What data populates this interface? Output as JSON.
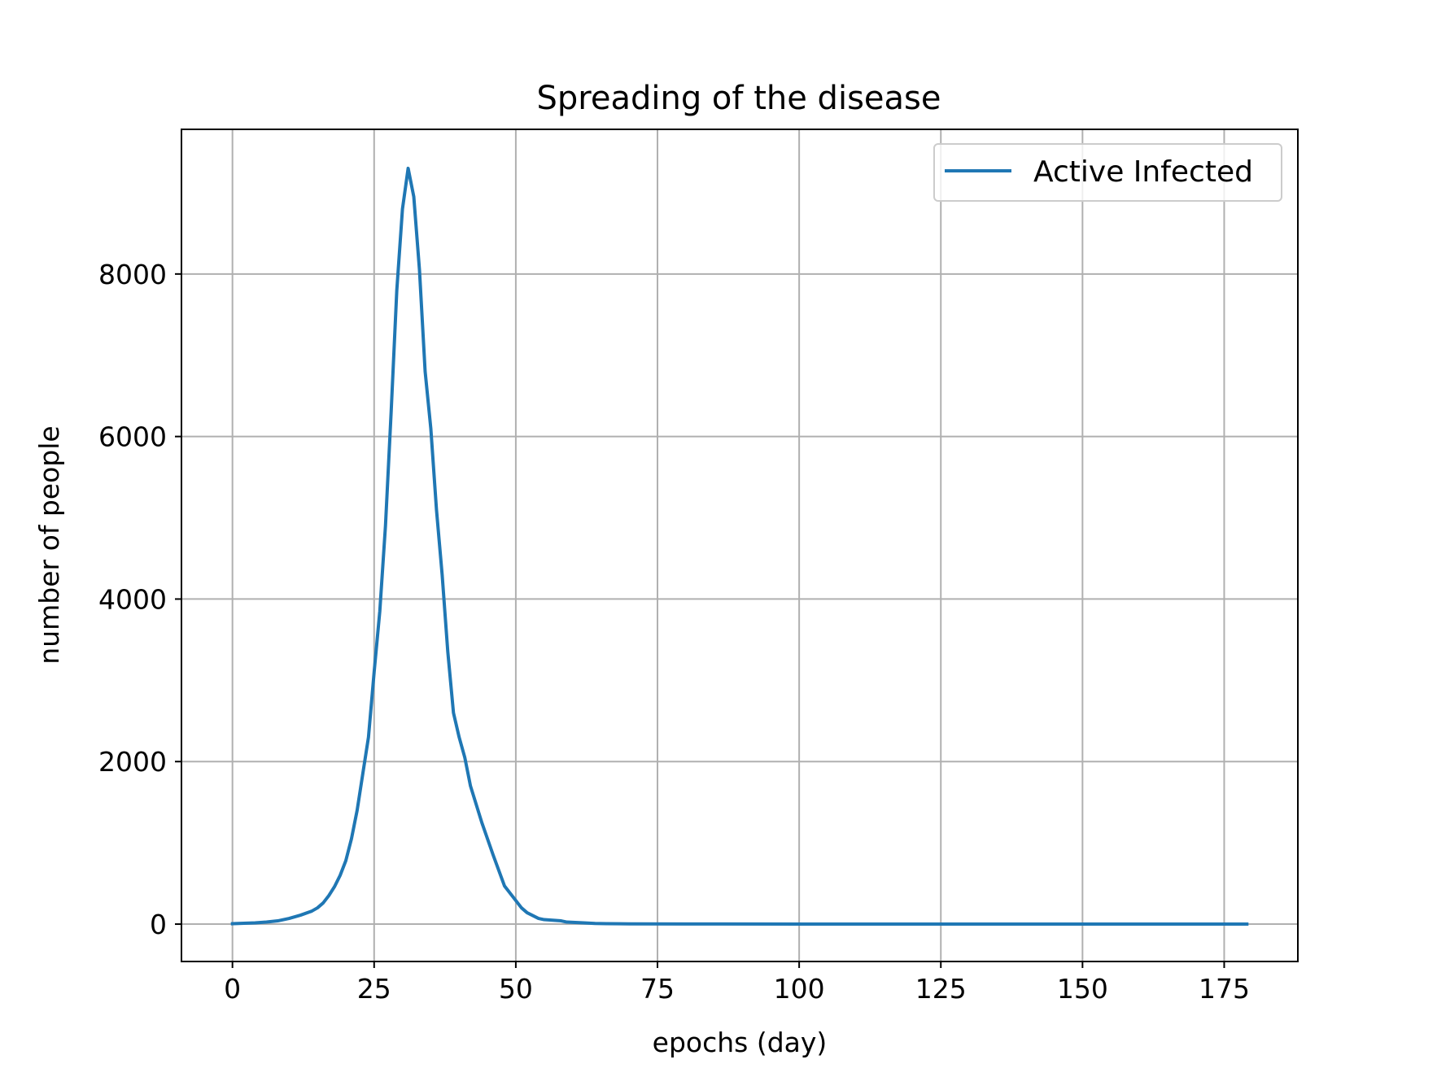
{
  "chart_data": {
    "type": "line",
    "title": "Spreading of the disease",
    "xlabel": "epochs (day)",
    "ylabel": "number of people",
    "xlim": [
      -9,
      188
    ],
    "ylim": [
      -460,
      9780
    ],
    "xticks": [
      0,
      25,
      50,
      75,
      100,
      125,
      150,
      175
    ],
    "yticks": [
      0,
      2000,
      4000,
      6000,
      8000
    ],
    "grid": true,
    "legend_position": "upper right",
    "series": [
      {
        "name": "Active Infected",
        "color": "#1f77b4",
        "x": [
          0,
          4,
          6,
          8,
          10,
          12,
          14,
          15,
          16,
          17,
          18,
          19,
          20,
          21,
          22,
          23,
          24,
          25,
          26,
          27,
          28,
          29,
          30,
          31,
          32,
          33,
          34,
          35,
          36,
          37,
          38,
          39,
          40,
          41,
          42,
          44,
          46,
          48,
          50,
          51,
          52,
          54,
          55,
          57,
          58,
          59,
          62,
          64,
          66,
          70,
          80,
          100,
          125,
          150,
          179
        ],
        "y": [
          5,
          15,
          25,
          40,
          70,
          110,
          160,
          200,
          260,
          350,
          460,
          600,
          780,
          1050,
          1400,
          1850,
          2300,
          3100,
          3850,
          4900,
          6300,
          7800,
          8800,
          9300,
          8950,
          8050,
          6800,
          6100,
          5100,
          4300,
          3350,
          2600,
          2300,
          2050,
          1700,
          1250,
          850,
          470,
          290,
          200,
          140,
          70,
          55,
          45,
          40,
          25,
          15,
          8,
          5,
          3,
          2,
          1,
          1,
          1,
          1
        ]
      }
    ]
  }
}
